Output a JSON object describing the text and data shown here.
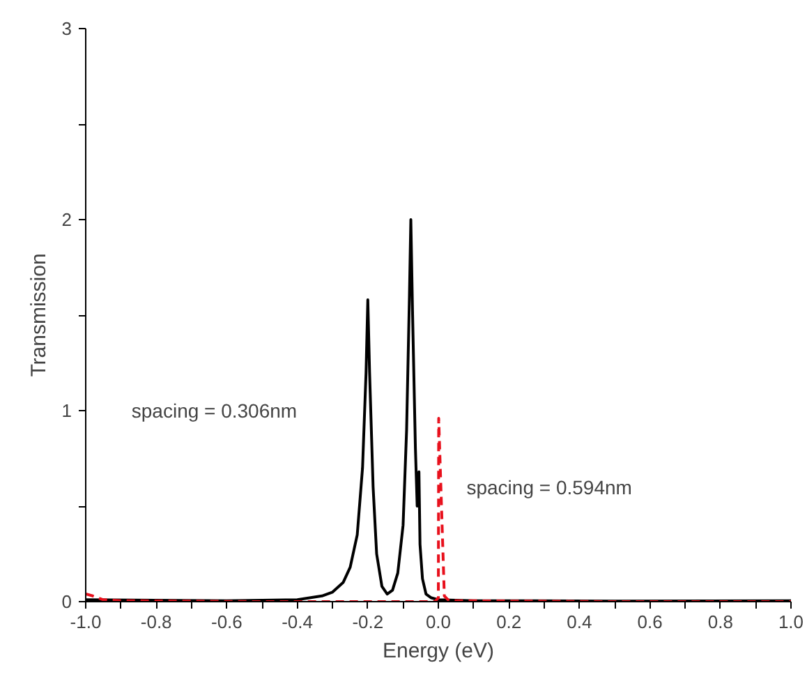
{
  "chart_data": {
    "type": "line",
    "xlabel": "Energy (eV)",
    "ylabel": "Transmission",
    "xlim": [
      -1.0,
      1.0
    ],
    "ylim": [
      0,
      3
    ],
    "xticks": [
      {
        "value": -1.0,
        "label": "-1.0"
      },
      {
        "value": -0.9,
        "label": null
      },
      {
        "value": -0.8,
        "label": "-0.8"
      },
      {
        "value": -0.7,
        "label": null
      },
      {
        "value": -0.6,
        "label": "-0.6"
      },
      {
        "value": -0.5,
        "label": null
      },
      {
        "value": -0.4,
        "label": "-0.4"
      },
      {
        "value": -0.3,
        "label": null
      },
      {
        "value": -0.2,
        "label": "-0.2"
      },
      {
        "value": -0.1,
        "label": null
      },
      {
        "value": 0.0,
        "label": "0.0"
      },
      {
        "value": 0.1,
        "label": null
      },
      {
        "value": 0.2,
        "label": "0.2"
      },
      {
        "value": 0.3,
        "label": null
      },
      {
        "value": 0.4,
        "label": "0.4"
      },
      {
        "value": 0.5,
        "label": null
      },
      {
        "value": 0.6,
        "label": "0.6"
      },
      {
        "value": 0.7,
        "label": null
      },
      {
        "value": 0.8,
        "label": "0.8"
      },
      {
        "value": 0.9,
        "label": null
      },
      {
        "value": 1.0,
        "label": "1.0"
      }
    ],
    "yticks": [
      0,
      {
        "value": 0.5,
        "label": null
      },
      1,
      {
        "value": 1.5,
        "label": null
      },
      2,
      {
        "value": 2.5,
        "label": null
      },
      3
    ],
    "grid": false,
    "series": [
      {
        "color": "#000000",
        "line_style": "solid",
        "x": [
          -1.0,
          -0.6,
          -0.4,
          -0.33,
          -0.3,
          -0.27,
          -0.25,
          -0.23,
          -0.215,
          -0.205,
          -0.2,
          -0.195,
          -0.185,
          -0.175,
          -0.16,
          -0.145,
          -0.13,
          -0.115,
          -0.1,
          -0.09,
          -0.082,
          -0.078,
          -0.073,
          -0.065,
          -0.06,
          -0.055,
          -0.052,
          -0.045,
          -0.035,
          -0.02,
          0.0,
          0.1,
          0.5,
          1.0
        ],
        "values": [
          0.01,
          0.005,
          0.01,
          0.03,
          0.05,
          0.1,
          0.18,
          0.35,
          0.7,
          1.2,
          1.58,
          1.2,
          0.6,
          0.25,
          0.08,
          0.04,
          0.06,
          0.15,
          0.4,
          0.9,
          1.6,
          2.0,
          1.5,
          0.8,
          0.5,
          0.68,
          0.3,
          0.12,
          0.04,
          0.02,
          0.01,
          0.005,
          0.003,
          0.005
        ]
      },
      {
        "color": "#e8101c",
        "line_style": "dashed",
        "x": [
          -1.0,
          -0.98,
          -0.95,
          -0.9,
          -0.5,
          -0.1,
          -0.01,
          0.0,
          0.001,
          0.017,
          0.03,
          0.5,
          1.0
        ],
        "values": [
          0.04,
          0.03,
          0.01,
          0.005,
          0,
          0,
          0,
          0.02,
          0.96,
          0.03,
          0.005,
          0,
          0
        ]
      }
    ],
    "annotations": [
      "spacing = 0.306nm",
      "spacing = 0.594nm"
    ]
  }
}
